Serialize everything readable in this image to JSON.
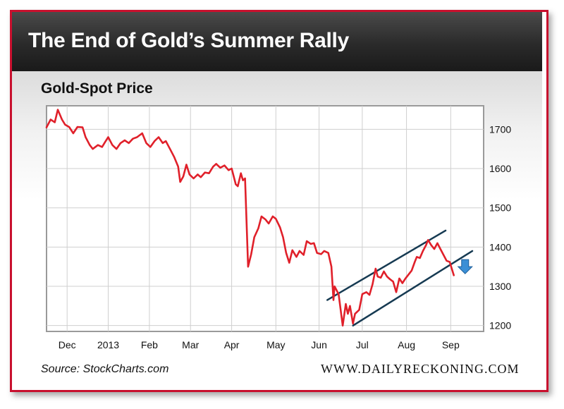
{
  "header": {
    "title": "The End of Gold’s Summer Rally"
  },
  "footer": {
    "source": "Source: StockCharts.com",
    "site": "WWW.DAILYRECKONING.COM"
  },
  "colors": {
    "frame": "#c8102e",
    "series": "#e0202a",
    "channel": "#163a52",
    "arrow": "#3b8fd6"
  },
  "chart_data": {
    "type": "line",
    "title": "Gold-Spot Price",
    "xlabel": "",
    "ylabel": "",
    "y_axis_side": "right",
    "ylim": [
      1185,
      1760
    ],
    "xlim": [
      0,
      42.5
    ],
    "yticks": [
      1200,
      1300,
      1400,
      1500,
      1600,
      1700
    ],
    "xticks": [
      {
        "label": "Dec",
        "x": 2
      },
      {
        "label": "2013",
        "x": 6
      },
      {
        "label": "Feb",
        "x": 10
      },
      {
        "label": "Mar",
        "x": 14
      },
      {
        "label": "Apr",
        "x": 18
      },
      {
        "label": "May",
        "x": 22.3
      },
      {
        "label": "Jun",
        "x": 26.5
      },
      {
        "label": "Jul",
        "x": 30.7
      },
      {
        "label": "Aug",
        "x": 35
      },
      {
        "label": "Sep",
        "x": 39.3
      }
    ],
    "grid": true,
    "series": [
      {
        "values": [
          [
            0,
            1705
          ],
          [
            0.4,
            1725
          ],
          [
            0.8,
            1718
          ],
          [
            1.1,
            1750
          ],
          [
            1.5,
            1725
          ],
          [
            1.8,
            1712
          ],
          [
            2.2,
            1706
          ],
          [
            2.6,
            1690
          ],
          [
            3.0,
            1706
          ],
          [
            3.5,
            1705
          ],
          [
            3.8,
            1680
          ],
          [
            4.2,
            1660
          ],
          [
            4.5,
            1650
          ],
          [
            5.0,
            1660
          ],
          [
            5.4,
            1655
          ],
          [
            5.7,
            1668
          ],
          [
            6.0,
            1680
          ],
          [
            6.4,
            1660
          ],
          [
            6.8,
            1650
          ],
          [
            7.2,
            1665
          ],
          [
            7.6,
            1672
          ],
          [
            8.0,
            1665
          ],
          [
            8.4,
            1676
          ],
          [
            8.8,
            1680
          ],
          [
            9.3,
            1690
          ],
          [
            9.7,
            1665
          ],
          [
            10.1,
            1655
          ],
          [
            10.5,
            1670
          ],
          [
            10.9,
            1680
          ],
          [
            11.3,
            1665
          ],
          [
            11.6,
            1670
          ],
          [
            12.0,
            1650
          ],
          [
            12.4,
            1630
          ],
          [
            12.8,
            1605
          ],
          [
            13.0,
            1566
          ],
          [
            13.3,
            1580
          ],
          [
            13.6,
            1610
          ],
          [
            13.9,
            1585
          ],
          [
            14.3,
            1575
          ],
          [
            14.7,
            1585
          ],
          [
            15.0,
            1578
          ],
          [
            15.4,
            1590
          ],
          [
            15.8,
            1588
          ],
          [
            16.2,
            1605
          ],
          [
            16.5,
            1612
          ],
          [
            16.9,
            1602
          ],
          [
            17.3,
            1608
          ],
          [
            17.7,
            1596
          ],
          [
            18.0,
            1600
          ],
          [
            18.4,
            1560
          ],
          [
            18.6,
            1555
          ],
          [
            18.9,
            1588
          ],
          [
            19.1,
            1570
          ],
          [
            19.3,
            1575
          ],
          [
            19.6,
            1350
          ],
          [
            19.9,
            1382
          ],
          [
            20.2,
            1425
          ],
          [
            20.6,
            1448
          ],
          [
            20.9,
            1478
          ],
          [
            21.3,
            1470
          ],
          [
            21.6,
            1460
          ],
          [
            22.0,
            1478
          ],
          [
            22.3,
            1472
          ],
          [
            22.7,
            1450
          ],
          [
            23.0,
            1425
          ],
          [
            23.3,
            1385
          ],
          [
            23.6,
            1360
          ],
          [
            23.9,
            1392
          ],
          [
            24.3,
            1375
          ],
          [
            24.6,
            1390
          ],
          [
            25.0,
            1380
          ],
          [
            25.3,
            1415
          ],
          [
            25.7,
            1408
          ],
          [
            26.0,
            1410
          ],
          [
            26.3,
            1385
          ],
          [
            26.7,
            1382
          ],
          [
            27.0,
            1390
          ],
          [
            27.4,
            1385
          ],
          [
            27.7,
            1350
          ],
          [
            27.9,
            1265
          ],
          [
            28.0,
            1300
          ],
          [
            28.4,
            1280
          ],
          [
            28.8,
            1200
          ],
          [
            29.1,
            1255
          ],
          [
            29.3,
            1230
          ],
          [
            29.5,
            1250
          ],
          [
            29.8,
            1205
          ],
          [
            30.0,
            1230
          ],
          [
            30.4,
            1240
          ],
          [
            30.7,
            1280
          ],
          [
            31.1,
            1285
          ],
          [
            31.4,
            1278
          ],
          [
            31.7,
            1305
          ],
          [
            32.0,
            1345
          ],
          [
            32.2,
            1325
          ],
          [
            32.5,
            1322
          ],
          [
            32.8,
            1338
          ],
          [
            33.1,
            1325
          ],
          [
            33.4,
            1318
          ],
          [
            33.7,
            1312
          ],
          [
            34.0,
            1285
          ],
          [
            34.3,
            1320
          ],
          [
            34.6,
            1308
          ],
          [
            34.9,
            1320
          ],
          [
            35.2,
            1330
          ],
          [
            35.5,
            1340
          ],
          [
            35.8,
            1362
          ],
          [
            36.0,
            1375
          ],
          [
            36.3,
            1372
          ],
          [
            36.6,
            1390
          ],
          [
            36.9,
            1405
          ],
          [
            37.1,
            1418
          ],
          [
            37.4,
            1405
          ],
          [
            37.7,
            1395
          ],
          [
            38.0,
            1410
          ],
          [
            38.3,
            1395
          ],
          [
            38.6,
            1380
          ],
          [
            38.9,
            1365
          ],
          [
            39.2,
            1362
          ],
          [
            39.6,
            1328
          ]
        ]
      }
    ],
    "annotations": [
      {
        "type": "channel_line",
        "from": [
          27.3,
          1265
        ],
        "to": [
          38.8,
          1442
        ]
      },
      {
        "type": "channel_line",
        "from": [
          29.8,
          1200
        ],
        "to": [
          41.4,
          1390
        ]
      },
      {
        "type": "arrow",
        "direction": "down",
        "x": 40.7,
        "y": 1350
      }
    ]
  }
}
